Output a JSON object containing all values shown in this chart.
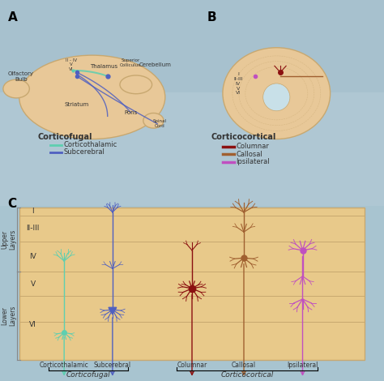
{
  "bg_top_color": "#a8c4d0",
  "bg_bottom_color": "#c8dde5",
  "panel_c_bg": "#e8c98a",
  "panel_c_border": "#c8a870",
  "brain_fill": "#e8c898",
  "brain_border": "#c8a870",
  "corticothalamic_color": "#5ecfb0",
  "subcerebral_color": "#5060c0",
  "columnar_color": "#8b1010",
  "callosal_color": "#a06030",
  "ipsilateral_color": "#c050c0",
  "layer_line_color": "#c8a870",
  "label_color": "#333333",
  "title_a": "A",
  "title_b": "B",
  "title_c": "C",
  "layers": [
    "I",
    "II-III",
    "IV",
    "V",
    "VI"
  ],
  "upper_layers_label": "Upper\nLayers",
  "lower_layers_label": "Lower\nLayers",
  "corticofugal_label": "Corticofugal",
  "corticocortical_label": "Corticocortical",
  "neuron_labels": [
    "Corticothalamic",
    "Subcerebral",
    "Columnar",
    "Callosal",
    "Ipsilateral"
  ],
  "legend_cf_title": "Corticofugal",
  "legend_cc_title": "Corticocortical",
  "legend_cf_items": [
    "Corticothalamic",
    "Subcerebral"
  ],
  "legend_cc_items": [
    "Columnar",
    "Callosal",
    "Ipsilateral"
  ]
}
